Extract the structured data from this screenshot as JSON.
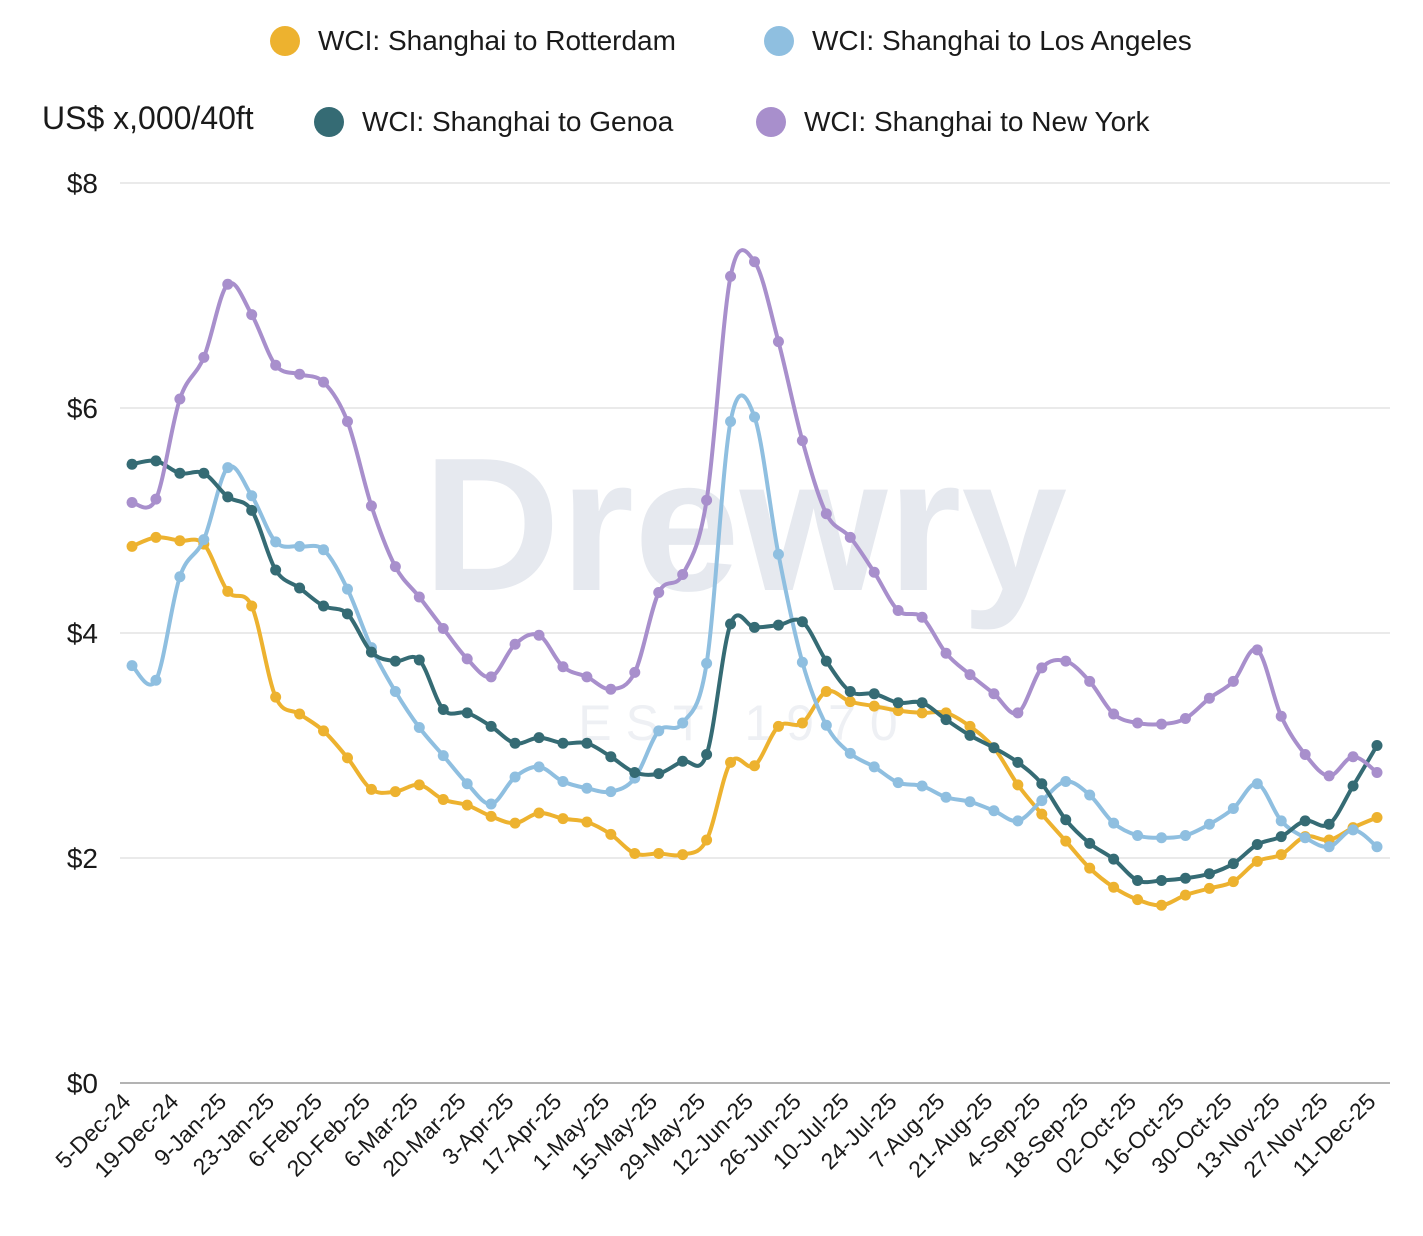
{
  "legend": [
    {
      "label": "WCI: Shanghai to Rotterdam",
      "color": "#EDB22F"
    },
    {
      "label": "WCI: Shanghai to Los Angeles",
      "color": "#8FBFE0"
    },
    {
      "label": "WCI: Shanghai to Genoa",
      "color": "#356B74"
    },
    {
      "label": "WCI: Shanghai to New York",
      "color": "#A88FCC"
    }
  ],
  "watermark": {
    "brand": "Drewry",
    "est": "EST 1970"
  },
  "chart_data": {
    "type": "line",
    "title": "",
    "ylabel": "US$ x,000/40ft",
    "xlabel": "",
    "ylim": [
      0,
      8
    ],
    "yticks": [
      0,
      2,
      4,
      6,
      8
    ],
    "ytick_labels": [
      "$0",
      "$2",
      "$4",
      "$6",
      "$8"
    ],
    "grid": true,
    "legend_position": "top",
    "x_tick_labels": [
      "5-Dec-24",
      "19-Dec-24",
      "9-Jan-25",
      "23-Jan-25",
      "6-Feb-25",
      "20-Feb-25",
      "6-Mar-25",
      "20-Mar-25",
      "3-Apr-25",
      "17-Apr-25",
      "1-May-25",
      "15-May-25",
      "29-May-25",
      "12-Jun-25",
      "26-Jun-25",
      "10-Jul-25",
      "24-Jul-25",
      "7-Aug-25",
      "21-Aug-25",
      "4-Sep-25",
      "18-Sep-25",
      "02-Oct-25",
      "16-Oct-25",
      "30-Oct-25",
      "13-Nov-25",
      "27-Nov-25",
      "11-Dec-25"
    ],
    "series": [
      {
        "name": "WCI: Shanghai to Rotterdam",
        "color": "#EDB22F",
        "values": [
          4.77,
          4.85,
          4.82,
          4.79,
          4.37,
          4.24,
          3.43,
          3.28,
          3.13,
          2.89,
          2.61,
          2.59,
          2.65,
          2.52,
          2.47,
          2.37,
          2.31,
          2.4,
          2.35,
          2.32,
          2.21,
          2.04,
          2.04,
          2.03,
          2.16,
          2.85,
          2.82,
          3.17,
          3.2,
          3.48,
          3.39,
          3.35,
          3.31,
          3.29,
          3.29,
          3.17,
          2.98,
          2.65,
          2.39,
          2.15,
          1.91,
          1.74,
          1.63,
          1.58,
          1.67,
          1.73,
          1.79,
          1.97,
          2.03,
          2.19,
          2.16,
          2.27,
          2.36
        ]
      },
      {
        "name": "WCI: Shanghai to Los Angeles",
        "color": "#8FBFE0",
        "values": [
          3.71,
          3.58,
          4.5,
          4.83,
          5.47,
          5.22,
          4.81,
          4.77,
          4.74,
          4.39,
          3.87,
          3.48,
          3.16,
          2.91,
          2.66,
          2.48,
          2.72,
          2.81,
          2.68,
          2.62,
          2.59,
          2.71,
          3.13,
          3.2,
          3.73,
          5.88,
          5.92,
          4.7,
          3.74,
          3.18,
          2.93,
          2.81,
          2.67,
          2.64,
          2.54,
          2.5,
          2.42,
          2.33,
          2.51,
          2.68,
          2.56,
          2.31,
          2.2,
          2.18,
          2.2,
          2.3,
          2.44,
          2.66,
          2.33,
          2.18,
          2.1,
          2.25,
          2.1
        ]
      },
      {
        "name": "WCI: Shanghai to Genoa",
        "color": "#356B74",
        "values": [
          5.5,
          5.53,
          5.42,
          5.42,
          5.21,
          5.09,
          4.56,
          4.4,
          4.24,
          4.17,
          3.83,
          3.75,
          3.76,
          3.32,
          3.29,
          3.17,
          3.02,
          3.07,
          3.02,
          3.02,
          2.9,
          2.76,
          2.75,
          2.86,
          2.92,
          4.08,
          4.05,
          4.07,
          4.1,
          3.75,
          3.48,
          3.46,
          3.38,
          3.38,
          3.23,
          3.09,
          2.98,
          2.85,
          2.66,
          2.34,
          2.13,
          1.99,
          1.8,
          1.8,
          1.82,
          1.86,
          1.95,
          2.12,
          2.19,
          2.33,
          2.3,
          2.64,
          3.0
        ]
      },
      {
        "name": "WCI: Shanghai to New York",
        "color": "#A88FCC",
        "values": [
          5.16,
          5.19,
          6.08,
          6.45,
          7.1,
          6.83,
          6.38,
          6.3,
          6.23,
          5.88,
          5.13,
          4.59,
          4.32,
          4.04,
          3.77,
          3.61,
          3.9,
          3.98,
          3.7,
          3.61,
          3.5,
          3.65,
          4.36,
          4.52,
          5.18,
          7.17,
          7.3,
          6.59,
          5.71,
          5.06,
          4.85,
          4.54,
          4.2,
          4.14,
          3.82,
          3.63,
          3.46,
          3.29,
          3.69,
          3.75,
          3.57,
          3.28,
          3.2,
          3.19,
          3.24,
          3.42,
          3.57,
          3.85,
          3.26,
          2.92,
          2.73,
          2.9,
          2.76
        ]
      }
    ]
  }
}
